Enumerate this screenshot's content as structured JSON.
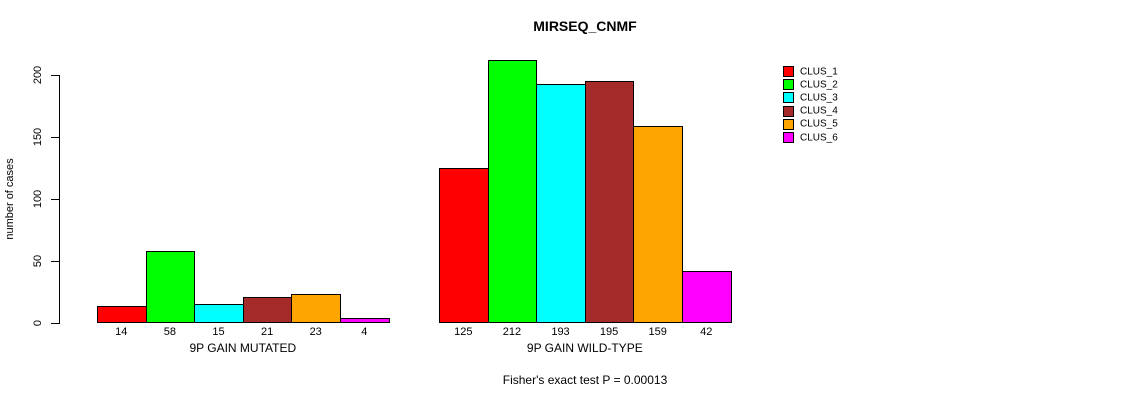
{
  "chart_data": {
    "type": "bar",
    "title": "MIRSEQ_CNMF",
    "ylabel": "number of cases",
    "xlabel": "",
    "ylim": [
      0,
      212
    ],
    "yticks": [
      0,
      50,
      100,
      150,
      200
    ],
    "grid": false,
    "legend_position": "right",
    "legend": [
      {
        "label": "CLUS_1",
        "color": "#FF0000"
      },
      {
        "label": "CLUS_2",
        "color": "#00FF00"
      },
      {
        "label": "CLUS_3",
        "color": "#00FFFF"
      },
      {
        "label": "CLUS_4",
        "color": "#A52A2A"
      },
      {
        "label": "CLUS_5",
        "color": "#FFA500"
      },
      {
        "label": "CLUS_6",
        "color": "#FF00FF"
      }
    ],
    "groups": [
      {
        "label": "9P GAIN MUTATED",
        "values": [
          14,
          58,
          15,
          21,
          23,
          4
        ],
        "bar_value_labels": [
          "14",
          "58",
          "15",
          "21",
          "23",
          "4"
        ]
      },
      {
        "label": "9P GAIN WILD-TYPE",
        "values": [
          125,
          212,
          193,
          195,
          159,
          42
        ],
        "bar_value_labels": [
          "125",
          "212",
          "193",
          "195",
          "159",
          "42"
        ]
      }
    ],
    "annotation": "Fisher's exact test P = 0.00013"
  }
}
